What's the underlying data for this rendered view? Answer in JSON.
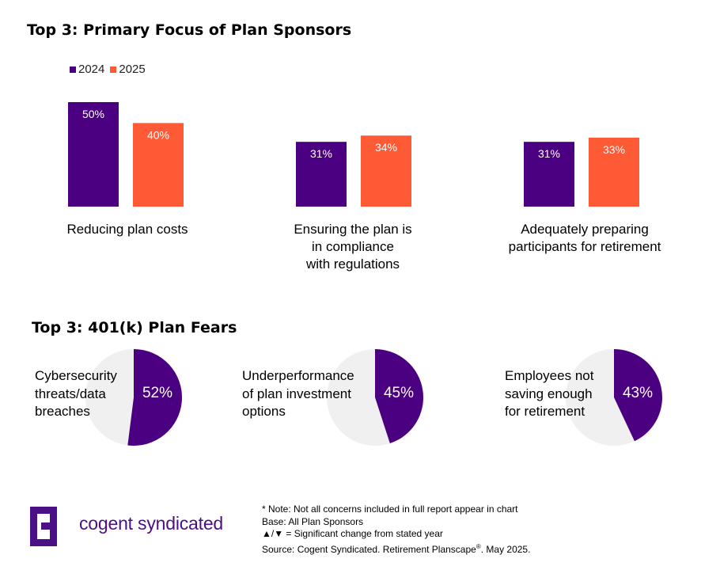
{
  "title_primary": "Top 3: Primary Focus of Plan Sponsors",
  "title_fears": "Top 3: 401(k) Plan Fears",
  "colors": {
    "y2024": "#4b0082",
    "y2025": "#ff5a36",
    "pie_rest": "#f0f0f0",
    "logo": "#4b0f86"
  },
  "chart_data": [
    {
      "type": "bar",
      "title": "Top 3: Primary Focus of Plan Sponsors",
      "legend": [
        "2024",
        "2025"
      ],
      "categories": [
        [
          "Reducing plan costs"
        ],
        [
          "Ensuring the plan is",
          "in compliance",
          "with regulations"
        ],
        [
          "Adequately preparing",
          "participants for retirement"
        ]
      ],
      "series": [
        {
          "name": "2024",
          "values": [
            50,
            31,
            31
          ],
          "labels": [
            "50%",
            "31%",
            "31%"
          ]
        },
        {
          "name": "2025",
          "values": [
            40,
            34,
            33
          ],
          "labels": [
            "40%",
            "34%",
            "33%"
          ]
        }
      ],
      "ylim": [
        0,
        50
      ]
    },
    {
      "type": "pie",
      "title": "Top 3: 401(k) Plan Fears",
      "items": [
        {
          "label": [
            "Cybersecurity",
            "threats/data",
            "breaches"
          ],
          "value": 52,
          "value_label": "52%"
        },
        {
          "label": [
            "Underperformance",
            "of plan investment",
            "options"
          ],
          "value": 45,
          "value_label": "45%"
        },
        {
          "label": [
            "Employees not",
            "saving enough",
            "for retirement"
          ],
          "value": 43,
          "value_label": "43%"
        }
      ]
    }
  ],
  "logo": {
    "text": "cogent syndicated"
  },
  "notes": {
    "line1": "* Note: Not all concerns included in full report appear in chart",
    "line2": "Base: All Plan Sponsors",
    "line3": "▲/▼ = Significant change from stated year",
    "line4_pre": "Source: Cogent Syndicated. Retirement Planscape",
    "line4_sup": "®",
    "line4_post": ". May 2025."
  }
}
